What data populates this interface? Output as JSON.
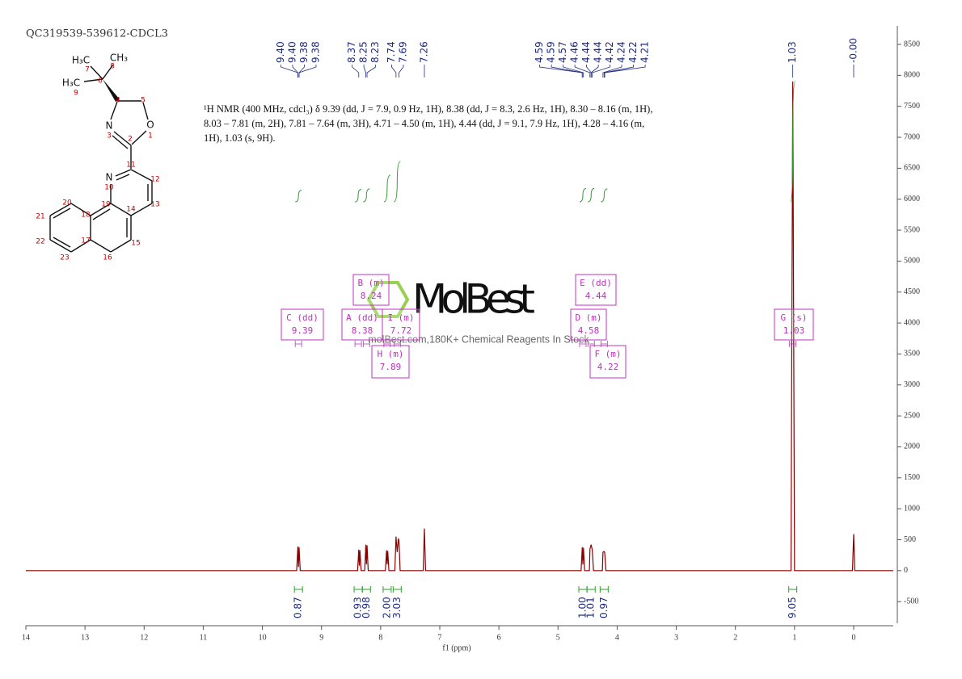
{
  "chart_data": {
    "type": "line",
    "title": "QC319539-539612-CDCL3",
    "description": "¹H NMR (400 MHz, cdcl₃) δ 9.39 (dd, J = 7.9, 0.9 Hz, 1H), 8.38 (dd, J = 8.3, 2.6 Hz, 1H), 8.30 – 8.16 (m, 1H), 8.03 – 7.81 (m, 2H), 7.81 – 7.64 (m, 3H), 4.71 – 4.50 (m, 1H), 4.44 (dd, J = 9.1, 7.9 Hz, 1H), 4.28 – 4.16 (m, 1H), 1.03 (s, 9H).",
    "x_label": "f1 (ppm)",
    "color": "#8b0000",
    "x": [
      14,
      9.42,
      9.4,
      9.39,
      9.38,
      9.36,
      8.39,
      8.37,
      8.36,
      8.35,
      8.33,
      8.27,
      8.25,
      8.24,
      8.23,
      8.21,
      7.92,
      7.9,
      7.89,
      7.88,
      7.86,
      7.76,
      7.74,
      7.72,
      7.7,
      7.69,
      7.67,
      7.28,
      7.26,
      7.24,
      4.61,
      4.59,
      4.58,
      4.57,
      4.55,
      4.47,
      4.46,
      4.44,
      4.42,
      4.4,
      4.25,
      4.24,
      4.22,
      4.21,
      4.19,
      1.06,
      1.03,
      1.0,
      0.02,
      0.0,
      -0.02,
      -0.67
    ],
    "values": [
      0,
      0,
      390,
      60,
      380,
      0,
      0,
      340,
      80,
      330,
      0,
      0,
      420,
      100,
      410,
      0,
      0,
      330,
      100,
      320,
      0,
      0,
      550,
      300,
      520,
      480,
      0,
      0,
      680,
      0,
      0,
      380,
      100,
      370,
      0,
      0,
      350,
      420,
      330,
      0,
      0,
      300,
      310,
      290,
      0,
      0,
      7900,
      0,
      0,
      590,
      0,
      0
    ],
    "xlim": [
      14,
      -0.67
    ],
    "xticks": [
      14,
      13,
      12,
      11,
      10,
      9,
      8,
      7,
      6,
      5,
      4,
      3,
      2,
      1,
      0
    ],
    "ylim": [
      -850,
      8800
    ],
    "yticks": [
      -500,
      0,
      500,
      1000,
      1500,
      2000,
      2500,
      3000,
      3500,
      4000,
      4500,
      5000,
      5500,
      6000,
      6500,
      7000,
      7500,
      8000,
      8500
    ],
    "peak_picks": {
      "values": [
        9.4,
        9.4,
        9.38,
        9.38,
        8.37,
        8.25,
        8.23,
        7.74,
        7.69,
        7.26,
        4.59,
        4.59,
        4.57,
        4.46,
        4.44,
        4.44,
        4.42,
        4.24,
        4.22,
        4.21,
        1.03,
        0.0
      ],
      "value_labels": [
        "9.40",
        "9.40",
        "9.38",
        "9.38",
        "8.37",
        "8.25",
        "8.23",
        "7.74",
        "7.69",
        "7.26",
        "4.59",
        "4.59",
        "4.57",
        "4.46",
        "4.44",
        "4.44",
        "4.42",
        "4.24",
        "4.22",
        "4.21",
        "1.03",
        "-0.00"
      ],
      "color": "#1f2a80"
    },
    "integrals": {
      "x": [
        9.39,
        8.38,
        8.24,
        7.89,
        7.72,
        4.58,
        4.44,
        4.22,
        1.03
      ],
      "values": [
        0.87,
        0.93,
        0.98,
        2,
        3.03,
        1,
        1.01,
        0.97,
        9.05
      ],
      "value_labels": [
        "0.87",
        "0.93",
        "0.98",
        "2.00",
        "3.03",
        "1.00",
        "1.01",
        "0.97",
        "9.05"
      ],
      "color": "#2e9e2e"
    },
    "multiplets": {
      "labels": [
        "C (dd)",
        "A (dd)",
        "B (m)",
        "I (m)",
        "H (m)",
        "D (m)",
        "E (dd)",
        "F (m)",
        "G (s)"
      ],
      "values": [
        9.39,
        8.38,
        8.24,
        7.72,
        7.89,
        4.58,
        4.44,
        4.22,
        1.03
      ],
      "color": "#c030c0"
    }
  },
  "watermark": {
    "brand": "MolBest",
    "tagline": "molBest.com,180K+ Chemical Reagents In Stock"
  },
  "structure": {
    "atoms": [
      "H₃C",
      "CH₃",
      "H₃C",
      "N",
      "O",
      "N"
    ],
    "locants": [
      "7",
      "8",
      "9",
      "6",
      "4",
      "5",
      "3",
      "1",
      "2",
      "11",
      "12",
      "10",
      "13",
      "19",
      "14",
      "20",
      "18",
      "21",
      "15",
      "22",
      "17",
      "23",
      "16"
    ]
  }
}
